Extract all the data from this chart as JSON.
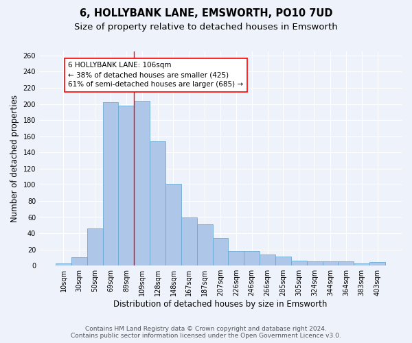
{
  "title": "6, HOLLYBANK LANE, EMSWORTH, PO10 7UD",
  "subtitle": "Size of property relative to detached houses in Emsworth",
  "xlabel": "Distribution of detached houses by size in Emsworth",
  "ylabel": "Number of detached properties",
  "categories": [
    "10sqm",
    "30sqm",
    "50sqm",
    "69sqm",
    "89sqm",
    "109sqm",
    "128sqm",
    "148sqm",
    "167sqm",
    "187sqm",
    "207sqm",
    "226sqm",
    "246sqm",
    "266sqm",
    "285sqm",
    "305sqm",
    "324sqm",
    "344sqm",
    "364sqm",
    "383sqm",
    "403sqm"
  ],
  "values": [
    3,
    10,
    46,
    202,
    198,
    204,
    154,
    101,
    60,
    51,
    34,
    18,
    18,
    14,
    11,
    6,
    5,
    5,
    5,
    3,
    4
  ],
  "bar_color": "#aec6e8",
  "bar_edge_color": "#6aaad4",
  "annotation_line1": "6 HOLLYBANK LANE: 106sqm",
  "annotation_line2": "← 38% of detached houses are smaller (425)",
  "annotation_line3": "61% of semi-detached houses are larger (685) →",
  "annotation_box_color": "white",
  "annotation_box_edge_color": "red",
  "vline_color": "red",
  "vline_x": 4.5,
  "ylim": [
    0,
    265
  ],
  "yticks": [
    0,
    20,
    40,
    60,
    80,
    100,
    120,
    140,
    160,
    180,
    200,
    220,
    240,
    260
  ],
  "footer_line1": "Contains HM Land Registry data © Crown copyright and database right 2024.",
  "footer_line2": "Contains public sector information licensed under the Open Government Licence v3.0.",
  "bg_color": "#eef2fa",
  "grid_color": "white",
  "title_fontsize": 10.5,
  "subtitle_fontsize": 9.5,
  "xlabel_fontsize": 8.5,
  "ylabel_fontsize": 8.5,
  "tick_fontsize": 7,
  "annot_fontsize": 7.5,
  "footer_fontsize": 6.5
}
